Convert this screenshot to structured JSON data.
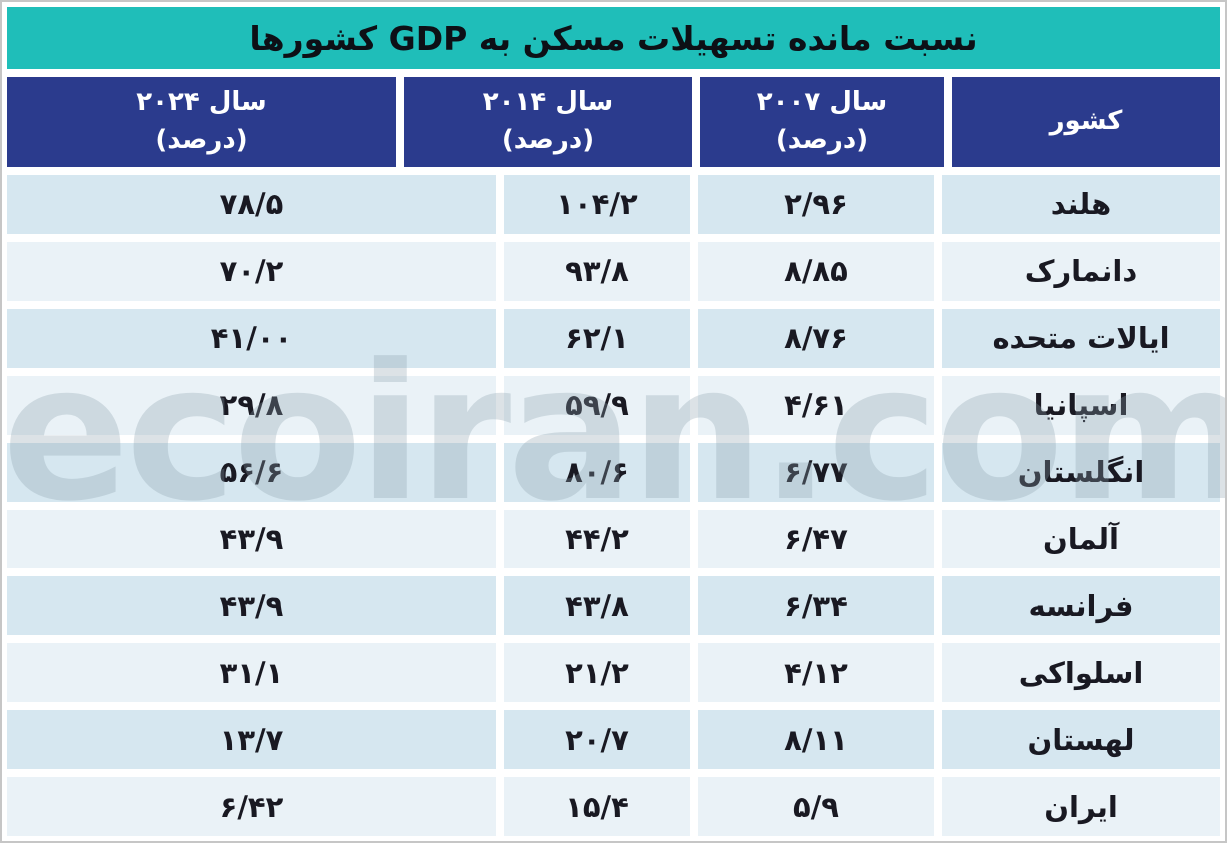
{
  "title": "نسبت مانده تسهیلات مسکن به GDP کشورها",
  "watermark": "ecoiran.com",
  "colors": {
    "title_band": "#1fbeb9",
    "header_row": "#2b3b8d",
    "row_dark": "#d6e7f0",
    "row_light": "#eaf2f7",
    "text_dark": "#191922",
    "header_text": "#ffffff"
  },
  "table": {
    "headers": {
      "country": "کشور",
      "y2007_line1": "سال ۲۰۰۷",
      "y2007_line2": "(درصد)",
      "y2014_line1": "سال ۲۰۱۴",
      "y2014_line2": "(درصد)",
      "y2024_line1": "سال ۲۰۲۴",
      "y2024_line2": "(درصد)"
    },
    "rows": [
      {
        "country": "هلند",
        "y2007": "۲/۹۶",
        "y2014": "۱۰۴/۲",
        "y2024": "۷۸/۵"
      },
      {
        "country": "دانمارک",
        "y2007": "۸/۸۵",
        "y2014": "۹۳/۸",
        "y2024": "۷۰/۲"
      },
      {
        "country": "ایالات متحده",
        "y2007": "۸/۷۶",
        "y2014": "۶۲/۱",
        "y2024": "۴۱/۰۰"
      },
      {
        "country": "اسپانیا",
        "y2007": "۴/۶۱",
        "y2014": "۵۹/۹",
        "y2024": "۲۹/۸"
      },
      {
        "country": "انگلستان",
        "y2007": "۶/۷۷",
        "y2014": "۸۰/۶",
        "y2024": "۵۶/۶"
      },
      {
        "country": "آلمان",
        "y2007": "۶/۴۷",
        "y2014": "۴۴/۲",
        "y2024": "۴۳/۹"
      },
      {
        "country": "فرانسه",
        "y2007": "۶/۳۴",
        "y2014": "۴۳/۸",
        "y2024": "۴۳/۹"
      },
      {
        "country": "اسلواکی",
        "y2007": "۴/۱۲",
        "y2014": "۲۱/۲",
        "y2024": "۳۱/۱"
      },
      {
        "country": "لهستان",
        "y2007": "۸/۱۱",
        "y2014": "۲۰/۷",
        "y2024": "۱۳/۷"
      },
      {
        "country": "ایران",
        "y2007": "۵/۹",
        "y2014": "۱۵/۴",
        "y2024": "۶/۴۲"
      }
    ]
  },
  "chart_data": {
    "type": "table",
    "title": "نسبت مانده تسهیلات مسکن به GDP کشورها",
    "columns": [
      "کشور",
      "سال ۲۰۰۷ (درصد)",
      "سال ۲۰۱۴ (درصد)",
      "سال ۲۰۲۴ (درصد)"
    ],
    "categories": [
      "هلند",
      "دانمارک",
      "ایالات متحده",
      "اسپانیا",
      "انگلستان",
      "آلمان",
      "فرانسه",
      "اسلواکی",
      "لهستان",
      "ایران"
    ],
    "series": [
      {
        "name": "سال ۲۰۰۷ (درصد)",
        "values": [
          2.96,
          8.85,
          8.76,
          4.61,
          6.77,
          6.47,
          6.34,
          4.12,
          8.11,
          5.9
        ],
        "values_display": [
          "۲/۹۶",
          "۸/۸۵",
          "۸/۷۶",
          "۴/۶۱",
          "۶/۷۷",
          "۶/۴۷",
          "۶/۳۴",
          "۴/۱۲",
          "۸/۱۱",
          "۵/۹"
        ]
      },
      {
        "name": "سال ۲۰۱۴ (درصد)",
        "values": [
          104.2,
          93.8,
          62.1,
          59.9,
          80.6,
          44.2,
          43.8,
          21.2,
          20.7,
          15.4
        ],
        "values_display": [
          "۱۰۴/۲",
          "۹۳/۸",
          "۶۲/۱",
          "۵۹/۹",
          "۸۰/۶",
          "۴۴/۲",
          "۴۳/۸",
          "۲۱/۲",
          "۲۰/۷",
          "۱۵/۴"
        ]
      },
      {
        "name": "سال ۲۰۲۴ (درصد)",
        "values": [
          78.5,
          70.2,
          41.0,
          29.8,
          56.6,
          43.9,
          43.9,
          31.1,
          13.7,
          6.42
        ],
        "values_display": [
          "۷۸/۵",
          "۷۰/۲",
          "۴۱/۰۰",
          "۲۹/۸",
          "۵۶/۶",
          "۴۳/۹",
          "۴۳/۹",
          "۳۱/۱",
          "۱۳/۷",
          "۶/۴۲"
        ]
      }
    ],
    "layout": "RTL table; country column rightmost, then 2007, 2014, 2024 toward the left; slash is the Persian decimal separator as printed"
  }
}
